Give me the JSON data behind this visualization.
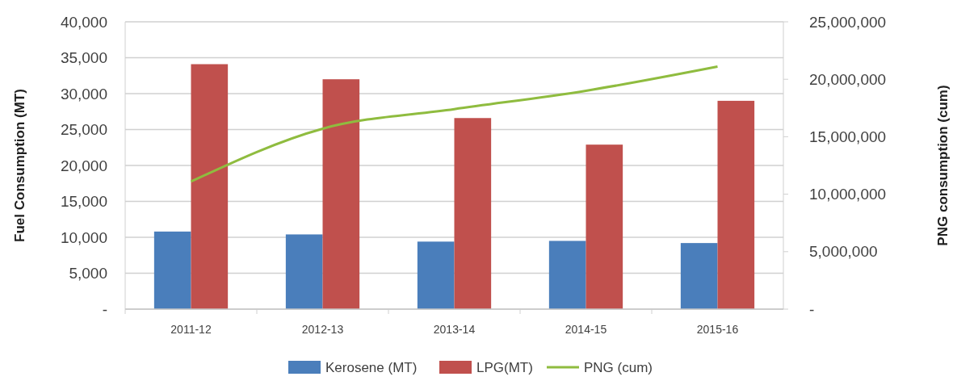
{
  "chart_data": {
    "type": "bar",
    "ylabel": "Fuel Consumption (MT)",
    "y2label": "PNG consumption (cum)",
    "categories": [
      "2011-12",
      "2012-13",
      "2013-14",
      "2014-15",
      "2015-16"
    ],
    "series": [
      {
        "name": "Kerosene (MT)",
        "color": "#4a7ebb",
        "values": [
          10800,
          10400,
          9400,
          9500,
          9200
        ]
      },
      {
        "name": "LPG(MT)",
        "color": "#c0504d",
        "values": [
          34100,
          32000,
          26600,
          22900,
          29000
        ]
      },
      {
        "name": "PNG (cum)",
        "type": "line",
        "axis": "y2",
        "color": "#8fbc3f",
        "values": [
          11100000,
          15700000,
          17400000,
          19000000,
          21100000
        ]
      }
    ],
    "ylim": [
      0,
      40000
    ],
    "yticks": [
      {
        "value": 0,
        "label": "-"
      },
      {
        "value": 5000,
        "label": "5,000"
      },
      {
        "value": 10000,
        "label": "10,000"
      },
      {
        "value": 15000,
        "label": "15,000"
      },
      {
        "value": 20000,
        "label": "20,000"
      },
      {
        "value": 25000,
        "label": "25,000"
      },
      {
        "value": 30000,
        "label": "30,000"
      },
      {
        "value": 35000,
        "label": "35,000"
      },
      {
        "value": 40000,
        "label": "40,000"
      }
    ],
    "y2lim": [
      0,
      25000000
    ],
    "y2ticks": [
      {
        "value": 0,
        "label": "-"
      },
      {
        "value": 5000000,
        "label": "5,000,000"
      },
      {
        "value": 10000000,
        "label": "10,000,000"
      },
      {
        "value": 15000000,
        "label": "15,000,000"
      },
      {
        "value": 20000000,
        "label": "20,000,000"
      },
      {
        "value": 25000000,
        "label": "25,000,000"
      }
    ],
    "grid": "y",
    "legend": "bottom",
    "marker": "none",
    "line_style": "solid"
  }
}
